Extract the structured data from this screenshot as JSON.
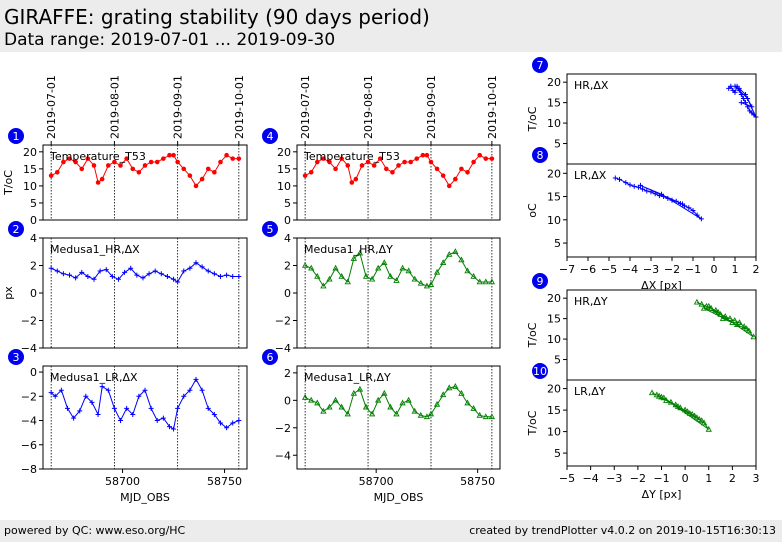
{
  "header": {
    "title": "GIRAFFE: grating stability (90 days period)",
    "subtitle": "Data range: 2019-07-01 ... 2019-09-30"
  },
  "footer": {
    "left": "powered by QC: www.eso.org/HC",
    "right": "created by trendPlotter v4.0.2 on 2019-10-15T16:30:13"
  },
  "colors": {
    "red": "#ff0000",
    "blue": "#0000ff",
    "green": "#008000",
    "badge": "#0000ee"
  },
  "date_ticks": [
    {
      "mjd": 58665,
      "label": "2019-07-01"
    },
    {
      "mjd": 58696,
      "label": "2019-08-01"
    },
    {
      "mjd": 58727,
      "label": "2019-09-01"
    },
    {
      "mjd": 58757,
      "label": "2019-10-01"
    }
  ],
  "chart_data": [
    {
      "id": 1,
      "badge": "1",
      "type": "line",
      "label": "Temperature_T53",
      "ylabel": "T/oC",
      "xlabel": "",
      "xlim": [
        58661,
        58761
      ],
      "ylim": [
        0,
        22
      ],
      "yticks": [
        0,
        5,
        10,
        15,
        20
      ],
      "xticks": [],
      "color": "red",
      "marker": "circle",
      "x": [
        58665,
        58668,
        58671,
        58674,
        58677,
        58680,
        58683,
        58686,
        58688,
        58690,
        58693,
        58696,
        58699,
        58702,
        58705,
        58708,
        58711,
        58714,
        58717,
        58720,
        58723,
        58725,
        58727,
        58730,
        58733,
        58736,
        58739,
        58742,
        58745,
        58748,
        58751,
        58754,
        58757
      ],
      "y": [
        13,
        14,
        17,
        18,
        17,
        15,
        18,
        16,
        11,
        12,
        16,
        17,
        16,
        18,
        15,
        14,
        16,
        17,
        17,
        18,
        19,
        19,
        17,
        15,
        13,
        10,
        12,
        15,
        14,
        17,
        19,
        18,
        18
      ]
    },
    {
      "id": 2,
      "badge": "2",
      "type": "line",
      "label": "Medusa1_HR,ΔX",
      "ylabel": "px",
      "xlabel": "",
      "xlim": [
        58661,
        58761
      ],
      "ylim": [
        -4,
        4
      ],
      "yticks": [
        -4,
        -2,
        0,
        2,
        4
      ],
      "xticks": [],
      "color": "blue",
      "marker": "plus",
      "x": [
        58665,
        58668,
        58671,
        58674,
        58677,
        58680,
        58683,
        58686,
        58689,
        58692,
        58695,
        58698,
        58701,
        58704,
        58707,
        58710,
        58713,
        58716,
        58719,
        58722,
        58725,
        58727,
        58730,
        58733,
        58736,
        58739,
        58742,
        58745,
        58748,
        58751,
        58754,
        58757
      ],
      "y": [
        1.8,
        1.6,
        1.4,
        1.3,
        1.1,
        1.5,
        1.2,
        1.0,
        1.6,
        1.7,
        1.2,
        1.0,
        1.5,
        1.8,
        1.3,
        1.1,
        1.4,
        1.6,
        1.4,
        1.2,
        1.0,
        0.8,
        1.6,
        1.8,
        2.2,
        1.9,
        1.6,
        1.4,
        1.2,
        1.3,
        1.2,
        1.2
      ]
    },
    {
      "id": 3,
      "badge": "3",
      "type": "line",
      "label": "Medusa1_LR,ΔX",
      "ylabel": "",
      "xlabel": "MJD_OBS",
      "xlim": [
        58661,
        58761
      ],
      "ylim": [
        -8,
        0.5
      ],
      "yticks": [
        -8,
        -6,
        -4,
        -2,
        0
      ],
      "xticks": [
        58700,
        58750
      ],
      "color": "blue",
      "marker": "plus",
      "x": [
        58665,
        58667,
        58670,
        58673,
        58676,
        58679,
        58682,
        58685,
        58688,
        58690,
        58693,
        58696,
        58699,
        58702,
        58705,
        58708,
        58711,
        58714,
        58717,
        58720,
        58723,
        58725,
        58727,
        58730,
        58733,
        58736,
        58739,
        58742,
        58745,
        58748,
        58751,
        58754,
        58757
      ],
      "y": [
        -1.7,
        -2.0,
        -1.5,
        -3.0,
        -3.8,
        -3.2,
        -2.0,
        -2.5,
        -3.5,
        -1.2,
        -1.5,
        -3.0,
        -4.0,
        -3.0,
        -3.5,
        -2.0,
        -1.5,
        -3.0,
        -4.0,
        -3.8,
        -4.5,
        -4.7,
        -3.0,
        -2.0,
        -1.5,
        -0.6,
        -1.5,
        -3.0,
        -3.5,
        -4.2,
        -4.6,
        -4.2,
        -4.0
      ]
    },
    {
      "id": 4,
      "badge": "4",
      "type": "line",
      "label": "Temperature_T53",
      "ylabel": "",
      "xlabel": "",
      "xlim": [
        58661,
        58761
      ],
      "ylim": [
        0,
        22
      ],
      "yticks": [
        0,
        5,
        10,
        15,
        20
      ],
      "xticks": [],
      "color": "red",
      "marker": "circle",
      "x": [
        58665,
        58668,
        58671,
        58674,
        58677,
        58680,
        58683,
        58686,
        58688,
        58690,
        58693,
        58696,
        58699,
        58702,
        58705,
        58708,
        58711,
        58714,
        58717,
        58720,
        58723,
        58725,
        58727,
        58730,
        58733,
        58736,
        58739,
        58742,
        58745,
        58748,
        58751,
        58754,
        58757
      ],
      "y": [
        13,
        14,
        17,
        18,
        17,
        15,
        18,
        16,
        11,
        12,
        16,
        17,
        16,
        18,
        15,
        14,
        16,
        17,
        17,
        18,
        19,
        19,
        17,
        15,
        13,
        10,
        12,
        15,
        14,
        17,
        19,
        18,
        18
      ]
    },
    {
      "id": 5,
      "badge": "5",
      "type": "line",
      "label": "Medusa1_HR,ΔY",
      "ylabel": "",
      "xlabel": "",
      "xlim": [
        58661,
        58761
      ],
      "ylim": [
        -4,
        4
      ],
      "yticks": [
        -4,
        -2,
        0,
        2,
        4
      ],
      "xticks": [],
      "color": "green",
      "marker": "triangle",
      "x": [
        58665,
        58668,
        58671,
        58674,
        58677,
        58680,
        58683,
        58686,
        58689,
        58692,
        58695,
        58698,
        58701,
        58704,
        58707,
        58710,
        58713,
        58716,
        58719,
        58722,
        58725,
        58727,
        58730,
        58733,
        58736,
        58739,
        58742,
        58745,
        58748,
        58751,
        58754,
        58757
      ],
      "y": [
        2.0,
        1.8,
        1.2,
        0.5,
        1.0,
        1.8,
        1.2,
        0.8,
        2.5,
        2.9,
        1.2,
        1.0,
        1.8,
        2.2,
        1.2,
        0.9,
        1.8,
        1.6,
        1.0,
        0.7,
        0.5,
        0.6,
        1.5,
        2.2,
        2.8,
        3.0,
        2.4,
        1.6,
        1.2,
        0.8,
        0.8,
        0.8
      ]
    },
    {
      "id": 6,
      "badge": "6",
      "type": "line",
      "label": "Medusa1_LR,ΔY",
      "ylabel": "",
      "xlabel": "MJD_OBS",
      "xlim": [
        58661,
        58761
      ],
      "ylim": [
        -5,
        2.5
      ],
      "yticks": [
        -4,
        -2,
        0,
        2
      ],
      "xticks": [
        58700,
        58750
      ],
      "color": "green",
      "marker": "triangle",
      "x": [
        58665,
        58668,
        58671,
        58674,
        58677,
        58680,
        58683,
        58686,
        58689,
        58692,
        58695,
        58698,
        58701,
        58704,
        58707,
        58710,
        58713,
        58716,
        58719,
        58722,
        58725,
        58727,
        58730,
        58733,
        58736,
        58739,
        58742,
        58745,
        58748,
        58751,
        58754,
        58757
      ],
      "y": [
        0.2,
        0.0,
        -0.2,
        -0.8,
        -0.5,
        0.0,
        -0.5,
        -1.0,
        0.5,
        0.8,
        -0.5,
        -1.0,
        0.0,
        0.5,
        -0.5,
        -1.0,
        -0.2,
        0.0,
        -0.8,
        -1.1,
        -1.2,
        -1.0,
        -0.3,
        0.4,
        0.9,
        1.0,
        0.5,
        -0.2,
        -0.6,
        -1.1,
        -1.2,
        -1.2
      ]
    },
    {
      "id": 7,
      "badge": "7",
      "type": "scatter",
      "label": "HR,ΔX",
      "ylabel": "T/oC",
      "xlabel": "",
      "xlim": [
        -7,
        2
      ],
      "ylim": [
        0,
        22
      ],
      "yticks": [
        5,
        10,
        15,
        20
      ],
      "xticks": [],
      "color": "blue",
      "marker": "plus",
      "x": [
        0.7,
        0.8,
        0.9,
        1.0,
        1.1,
        1.2,
        1.3,
        1.4,
        1.5,
        1.6,
        1.7,
        1.8,
        1.9,
        2.0,
        1.5,
        1.2,
        1.0,
        1.6,
        1.8,
        1.3
      ],
      "y": [
        18.5,
        19,
        18,
        17.5,
        19,
        18,
        17,
        16,
        15,
        14,
        13,
        12.5,
        12,
        11.5,
        17,
        18.5,
        19,
        16,
        14,
        15
      ]
    },
    {
      "id": 8,
      "badge": "8",
      "type": "scatter",
      "label": "LR,ΔX",
      "ylabel": "oC",
      "xlabel": "ΔX [px]",
      "xlim": [
        -7,
        2
      ],
      "ylim": [
        2,
        22
      ],
      "yticks": [
        5,
        10,
        15,
        20
      ],
      "xticks": [
        -7,
        -6,
        -5,
        -4,
        -3,
        -2,
        -1,
        0,
        1,
        2
      ],
      "color": "blue",
      "marker": "plus",
      "x": [
        -4.7,
        -4.5,
        -4.2,
        -4.0,
        -3.8,
        -3.6,
        -3.4,
        -3.2,
        -3.0,
        -2.8,
        -2.6,
        -2.4,
        -2.2,
        -2.0,
        -1.8,
        -1.6,
        -1.4,
        -1.2,
        -1.0,
        -0.8,
        -0.6,
        -2.5,
        -3.5,
        -1.5
      ],
      "y": [
        19,
        18.7,
        18,
        17.5,
        17.2,
        17,
        16.6,
        16.2,
        16,
        15.6,
        15.2,
        15,
        14.6,
        14.2,
        14,
        13.5,
        13,
        12.6,
        12,
        11,
        10.2,
        15.5,
        17.4,
        13.4
      ]
    },
    {
      "id": 9,
      "badge": "9",
      "type": "scatter",
      "label": "HR,ΔY",
      "ylabel": "T/oC",
      "xlabel": "",
      "xlim": [
        -5,
        3
      ],
      "ylim": [
        0,
        22
      ],
      "yticks": [
        5,
        10,
        15,
        20
      ],
      "xticks": [],
      "color": "green",
      "marker": "triangle",
      "x": [
        0.5,
        0.7,
        0.9,
        1.1,
        1.3,
        1.5,
        1.7,
        1.9,
        2.1,
        2.3,
        2.5,
        2.7,
        2.9,
        1.0,
        1.6,
        2.2,
        0.8,
        1.4,
        2.0,
        2.6
      ],
      "y": [
        19,
        18.5,
        18,
        17.5,
        17,
        16,
        15.5,
        15,
        14.5,
        14,
        13,
        12,
        10.5,
        18,
        15,
        13.5,
        17.5,
        16.5,
        14,
        12.5
      ]
    },
    {
      "id": 10,
      "badge": "10",
      "type": "scatter",
      "label": "LR,ΔY",
      "ylabel": "T/oC",
      "xlabel": "ΔY [px]",
      "xlim": [
        -5,
        3
      ],
      "ylim": [
        2,
        22
      ],
      "yticks": [
        5,
        10,
        15,
        20
      ],
      "xticks": [
        -5,
        -4,
        -3,
        -2,
        -1,
        0,
        1,
        2,
        3
      ],
      "color": "green",
      "marker": "triangle",
      "x": [
        -1.4,
        -1.2,
        -1.0,
        -0.8,
        -0.6,
        -0.4,
        -0.2,
        0.0,
        0.2,
        0.4,
        0.6,
        0.8,
        1.0,
        -0.9,
        -0.3,
        0.3,
        0.7,
        -1.1,
        0.1,
        0.5
      ],
      "y": [
        19,
        18.5,
        18,
        17.2,
        16.8,
        16.2,
        15.5,
        15,
        14.2,
        13.6,
        12.8,
        12,
        10.5,
        17.8,
        15.8,
        14,
        12.5,
        18.2,
        14.6,
        13.2
      ]
    }
  ]
}
